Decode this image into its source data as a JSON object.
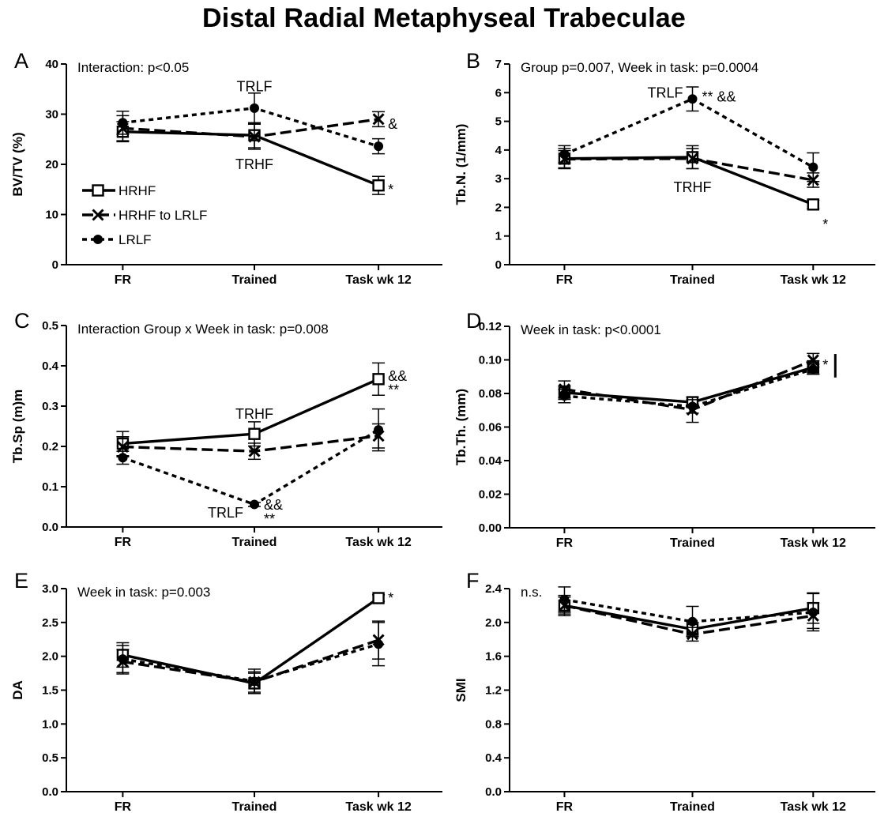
{
  "title": "Distal Radial Metaphyseal Trabeculae",
  "legend": {
    "items": [
      {
        "label": "HRHF",
        "marker": "open-square",
        "dash": "solid"
      },
      {
        "label": "HRHF to LRLF",
        "marker": "x",
        "dash": "long-dash"
      },
      {
        "label": "LRLF",
        "marker": "filled-circle",
        "dash": "short-dash"
      }
    ]
  },
  "chart_data": [
    {
      "panel": "A",
      "type": "line",
      "stat": "Interaction:  p<0.05",
      "ylabel": "BV/TV (%)",
      "xlabel": "",
      "categories": [
        "FR",
        "Trained",
        "Task wk 12"
      ],
      "ylim": [
        0,
        40
      ],
      "yticks": [
        "0",
        "10",
        "20",
        "30",
        "40"
      ],
      "series": [
        {
          "name": "HRHF",
          "values": [
            26.5,
            25.8,
            15.8
          ],
          "errors": [
            2.0,
            2.5,
            1.8
          ]
        },
        {
          "name": "HRHF to LRLF",
          "values": [
            27.2,
            25.5,
            29.0
          ],
          "errors": [
            2.5,
            2.5,
            1.5
          ]
        },
        {
          "name": "LRLF",
          "values": [
            28.3,
            31.2,
            23.6
          ],
          "errors": [
            2.3,
            3.0,
            1.5
          ]
        }
      ],
      "annotations": [
        {
          "text": "TRLF",
          "x": "Trained",
          "y": 35.5
        },
        {
          "text": "TRHF",
          "x": "Trained",
          "y": 20.0
        },
        {
          "text": "*",
          "x": "Task wk 12",
          "y": 15.0
        },
        {
          "text": "&",
          "x": "Task wk 12",
          "y": 28.0
        }
      ]
    },
    {
      "panel": "B",
      "type": "line",
      "stat": "Group p=0.007,  Week in task: p=0.0004",
      "ylabel": "Tb.N. (1/mm)",
      "xlabel": "",
      "categories": [
        "FR",
        "Trained",
        "Task wk 12"
      ],
      "ylim": [
        0,
        7
      ],
      "yticks": [
        "0",
        "1",
        "2",
        "3",
        "4",
        "5",
        "6",
        "7"
      ],
      "series": [
        {
          "name": "HRHF",
          "values": [
            3.7,
            3.75,
            2.1
          ],
          "errors": [
            0.35,
            0.4,
            0.15
          ]
        },
        {
          "name": "HRHF to LRLF",
          "values": [
            3.68,
            3.7,
            2.95
          ],
          "errors": [
            0.3,
            0.35,
            0.25
          ]
        },
        {
          "name": "LRLF",
          "values": [
            3.85,
            5.78,
            3.4
          ],
          "errors": [
            0.3,
            0.42,
            0.5
          ]
        }
      ],
      "annotations": [
        {
          "text": "TRLF",
          "x": "Trained",
          "y": 6.0
        },
        {
          "text": "** &&",
          "x": "Trained",
          "y": 5.85
        },
        {
          "text": "TRHF",
          "x": "Trained",
          "y": 2.7
        },
        {
          "text": "*",
          "x": "Task wk 12",
          "y": 1.4
        }
      ]
    },
    {
      "panel": "C",
      "type": "line",
      "stat": "Interaction Group x Week in task: p=0.008",
      "ylabel": "Tb.Sp (m)m",
      "xlabel": "",
      "categories": [
        "FR",
        "Trained",
        "Task wk 12"
      ],
      "ylim": [
        0,
        0.5
      ],
      "yticks": [
        "0.0",
        "0.1",
        "0.2",
        "0.3",
        "0.4",
        "0.5"
      ],
      "series": [
        {
          "name": "HRHF",
          "values": [
            0.207,
            0.231,
            0.367
          ],
          "errors": [
            0.03,
            0.03,
            0.04
          ]
        },
        {
          "name": "HRHF to LRLF",
          "values": [
            0.199,
            0.188,
            0.226
          ],
          "errors": [
            0.025,
            0.02,
            0.03
          ]
        },
        {
          "name": "LRLF",
          "values": [
            0.172,
            0.056,
            0.241
          ],
          "errors": [
            0.016,
            0.005,
            0.052
          ]
        }
      ],
      "annotations": [
        {
          "text": "TRHF",
          "x": "Trained",
          "y": 0.28
        },
        {
          "text": "TRLF",
          "x": "Trained",
          "y": 0.035
        },
        {
          "text": "&&",
          "x": "Trained",
          "y": 0.055
        },
        {
          "text": "**",
          "x": "Trained",
          "y": 0.02
        },
        {
          "text": "&&",
          "x": "Task wk 12",
          "y": 0.375
        },
        {
          "text": "**",
          "x": "Task wk 12",
          "y": 0.34
        }
      ]
    },
    {
      "panel": "D",
      "type": "line",
      "stat": "Week in task: p<0.0001",
      "ylabel": "Tb.Th. (mm)",
      "xlabel": "",
      "categories": [
        "FR",
        "Trained",
        "Task wk 12"
      ],
      "ylim": [
        0,
        0.12
      ],
      "yticks": [
        "0.00",
        "0.02",
        "0.04",
        "0.06",
        "0.08",
        "0.10",
        "0.12"
      ],
      "series": [
        {
          "name": "HRHF",
          "values": [
            0.0805,
            0.0748,
            0.0955
          ],
          "errors": [
            0.004,
            0.003,
            0.004
          ]
        },
        {
          "name": "HRHF to LRLF",
          "values": [
            0.0825,
            0.0703,
            0.0998
          ],
          "errors": [
            0.005,
            0.0075,
            0.004
          ]
        },
        {
          "name": "LRLF",
          "values": [
            0.0785,
            0.0723,
            0.0945
          ],
          "errors": [
            0.004,
            0.004,
            0.003
          ]
        }
      ],
      "annotations": [
        {
          "text": "*",
          "x": "Task wk 12",
          "y": 0.097
        }
      ]
    },
    {
      "panel": "E",
      "type": "line",
      "stat": "Week in task: p=0.003",
      "ylabel": "DA",
      "xlabel": "",
      "categories": [
        "FR",
        "Trained",
        "Task wk 12"
      ],
      "ylim": [
        0,
        3.0
      ],
      "yticks": [
        "0.0",
        "0.5",
        "1.0",
        "1.5",
        "2.0",
        "2.5",
        "3.0"
      ],
      "series": [
        {
          "name": "HRHF",
          "values": [
            2.02,
            1.6,
            2.86
          ],
          "errors": [
            0.18,
            0.15,
            0.05
          ]
        },
        {
          "name": "HRHF to LRLF",
          "values": [
            1.92,
            1.62,
            2.24
          ],
          "errors": [
            0.18,
            0.15,
            0.28
          ]
        },
        {
          "name": "LRLF",
          "values": [
            1.96,
            1.63,
            2.18
          ],
          "errors": [
            0.2,
            0.18,
            0.32
          ]
        }
      ],
      "annotations": [
        {
          "text": "*",
          "x": "Task wk 12",
          "y": 2.86
        }
      ]
    },
    {
      "panel": "F",
      "type": "line",
      "stat": "n.s.",
      "ylabel": "SMI",
      "xlabel": "",
      "categories": [
        "FR",
        "Trained",
        "Task wk 12"
      ],
      "ylim": [
        0,
        2.4
      ],
      "yticks": [
        "0.0",
        "0.4",
        "0.8",
        "1.2",
        "1.6",
        "2.0",
        "2.4"
      ],
      "series": [
        {
          "name": "HRHF",
          "values": [
            2.2,
            1.92,
            2.17
          ],
          "errors": [
            0.12,
            0.08,
            0.18
          ]
        },
        {
          "name": "HRHF to LRLF",
          "values": [
            2.2,
            1.86,
            2.08
          ],
          "errors": [
            0.1,
            0.08,
            0.15
          ]
        },
        {
          "name": "LRLF",
          "values": [
            2.27,
            2.01,
            2.12
          ],
          "errors": [
            0.15,
            0.18,
            0.22
          ]
        }
      ],
      "annotations": []
    }
  ]
}
